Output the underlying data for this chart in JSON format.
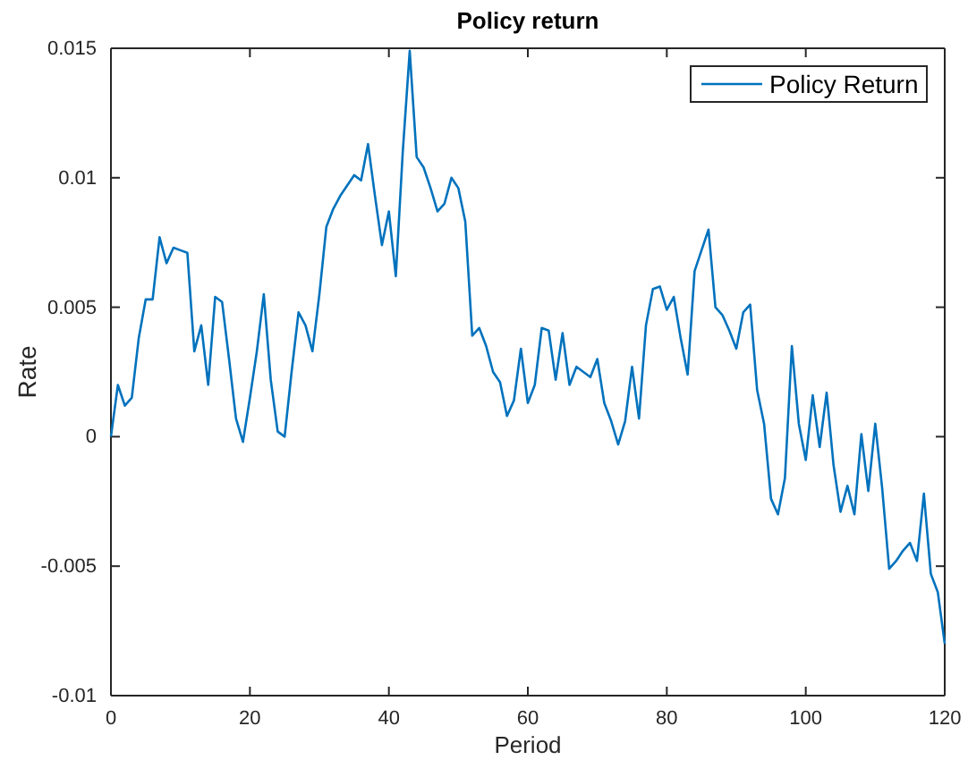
{
  "chart_data": {
    "type": "line",
    "title": "Policy return",
    "xlabel": "Period",
    "ylabel": "Rate",
    "x": [
      0,
      1,
      2,
      3,
      4,
      5,
      6,
      7,
      8,
      9,
      10,
      11,
      12,
      13,
      14,
      15,
      16,
      17,
      18,
      19,
      20,
      21,
      22,
      23,
      24,
      25,
      26,
      27,
      28,
      29,
      30,
      31,
      32,
      33,
      34,
      35,
      36,
      37,
      38,
      39,
      40,
      41,
      42,
      43,
      44,
      45,
      46,
      47,
      48,
      49,
      50,
      51,
      52,
      53,
      54,
      55,
      56,
      57,
      58,
      59,
      60,
      61,
      62,
      63,
      64,
      65,
      66,
      67,
      68,
      69,
      70,
      71,
      72,
      73,
      74,
      75,
      76,
      77,
      78,
      79,
      80,
      81,
      82,
      83,
      84,
      85,
      86,
      87,
      88,
      89,
      90,
      91,
      92,
      93,
      94,
      95,
      96,
      97,
      98,
      99,
      100,
      101,
      102,
      103,
      104,
      105,
      106,
      107,
      108,
      109,
      110,
      111,
      112,
      113,
      114,
      115,
      116,
      117,
      118,
      119,
      120
    ],
    "series": [
      {
        "name": "Policy Return",
        "color": "#0072bd",
        "values": [
          0,
          0.002,
          0.0012,
          0.0015,
          0.0038,
          0.0053,
          0.0053,
          0.0077,
          0.0067,
          0.0073,
          0.0072,
          0.0071,
          0.0033,
          0.0043,
          0.002,
          0.0054,
          0.0052,
          0.003,
          0.0007,
          -0.0002,
          0.0015,
          0.0033,
          0.0055,
          0.0022,
          0.0002,
          0,
          0.0025,
          0.0048,
          0.0043,
          0.0033,
          0.0055,
          0.0081,
          0.0088,
          0.0093,
          0.0097,
          0.0101,
          0.0099,
          0.0113,
          0.0093,
          0.0074,
          0.0087,
          0.0062,
          0.011,
          0.0149,
          0.0108,
          0.0104,
          0.0096,
          0.0087,
          0.009,
          0.01,
          0.0096,
          0.0083,
          0.0039,
          0.0042,
          0.0035,
          0.0025,
          0.0021,
          0.0008,
          0.0014,
          0.0034,
          0.0013,
          0.002,
          0.0042,
          0.0041,
          0.0022,
          0.004,
          0.002,
          0.0027,
          0.0025,
          0.0023,
          0.003,
          0.0013,
          0.0006,
          -0.0003,
          0.0006,
          0.0027,
          0.0007,
          0.0043,
          0.0057,
          0.0058,
          0.0049,
          0.0054,
          0.0038,
          0.0024,
          0.0064,
          0.0072,
          0.008,
          0.005,
          0.0047,
          0.0041,
          0.0034,
          0.0048,
          0.0051,
          0.0018,
          0.0005,
          -0.0024,
          -0.003,
          -0.0016,
          0.0035,
          0.0005,
          -0.0009,
          0.0016,
          -0.0004,
          0.0017,
          -0.0011,
          -0.0029,
          -0.0019,
          -0.003,
          0.0001,
          -0.0021,
          0.0005,
          -0.002,
          -0.0051,
          -0.0048,
          -0.0044,
          -0.0041,
          -0.0048,
          -0.0022,
          -0.0053,
          -0.006,
          -0.008
        ]
      }
    ],
    "xlim": [
      0,
      120
    ],
    "xticks": [
      0,
      20,
      40,
      60,
      80,
      100,
      120
    ],
    "ylim": [
      -0.01,
      0.015
    ],
    "yticks": [
      -0.01,
      -0.005,
      0,
      0.005,
      0.01,
      0.015
    ],
    "grid": false,
    "legend": "top right",
    "marker": "none",
    "line_style": "solid"
  }
}
